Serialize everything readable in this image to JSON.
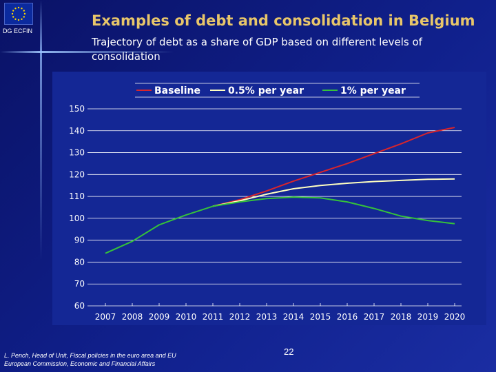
{
  "header": {
    "org_label": "DG ECFIN",
    "title": "Examples of debt and consolidation in Belgium",
    "subtitle": "Trajectory of debt as a share of GDP based on different levels of consolidation"
  },
  "footer": {
    "author_line": "L. Pench, Head of Unit, Fiscal policies in the euro area and EU",
    "institution_line": "European Commission, Economic and Financial Affairs",
    "page_number": "22"
  },
  "colors": {
    "title": "#e8c66a",
    "baseline": "#d9252b",
    "half_percent": "#ffffc0",
    "one_percent": "#35c23a"
  },
  "chart_data": {
    "type": "line",
    "title": "",
    "xlabel": "",
    "ylabel": "",
    "x": [
      "2007",
      "2008",
      "2009",
      "2010",
      "2011",
      "2012",
      "2013",
      "2014",
      "2015",
      "2016",
      "2017",
      "2018",
      "2019",
      "2020"
    ],
    "ylim": [
      60,
      150
    ],
    "yticks": [
      60,
      70,
      80,
      90,
      100,
      110,
      120,
      130,
      140,
      150
    ],
    "grid": true,
    "legend_position": "top",
    "series": [
      {
        "name": "Baseline",
        "color": "#d9252b",
        "values": [
          null,
          null,
          null,
          null,
          105.5,
          108.5,
          112.5,
          117.0,
          121.0,
          125.0,
          129.5,
          134.0,
          139.0,
          141.5
        ]
      },
      {
        "name": "0.5% per year",
        "color": "#ffffc0",
        "values": [
          null,
          null,
          null,
          null,
          105.5,
          108.0,
          111.0,
          113.5,
          115.0,
          116.0,
          116.8,
          117.3,
          117.8,
          118.0
        ]
      },
      {
        "name": "1% per year",
        "color": "#35c23a",
        "values": [
          84.0,
          89.5,
          97.0,
          101.5,
          105.5,
          107.5,
          109.0,
          109.7,
          109.3,
          107.5,
          104.5,
          101.0,
          99.0,
          97.5
        ]
      }
    ]
  }
}
